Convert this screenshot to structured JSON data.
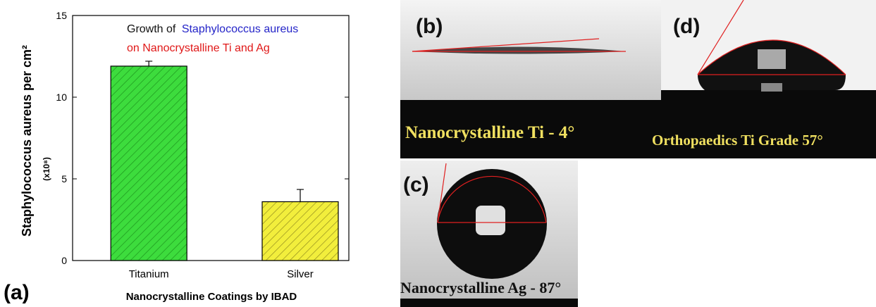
{
  "chart_data": {
    "type": "bar",
    "panel_label": "(a)",
    "title_parts": [
      "Growth of",
      "Staphylococcus  aureus",
      "on Nanocrystalline Ti and Ag"
    ],
    "y_label": "Staphylococcus aureus per cm²",
    "y_unit": "(x10⁸)",
    "x_label": "Nanocrystalline Coatings by IBAD",
    "categories": [
      "Titanium",
      "Silver"
    ],
    "values": [
      11.9,
      3.6
    ],
    "errors": [
      0.3,
      0.75
    ],
    "colors": [
      "#3ddc3d",
      "#f2ee3c"
    ],
    "ylim": [
      0,
      15
    ],
    "yticks": [
      0,
      5,
      10,
      15
    ]
  },
  "panels": [
    {
      "label": "(b)",
      "caption": "Nanocrystalline Ti - 4°"
    },
    {
      "label": "(d)",
      "caption": "Orthopaedics Ti Grade 57°"
    },
    {
      "label": "(c)",
      "caption": "Nanocrystalline Ag - 87°"
    }
  ]
}
